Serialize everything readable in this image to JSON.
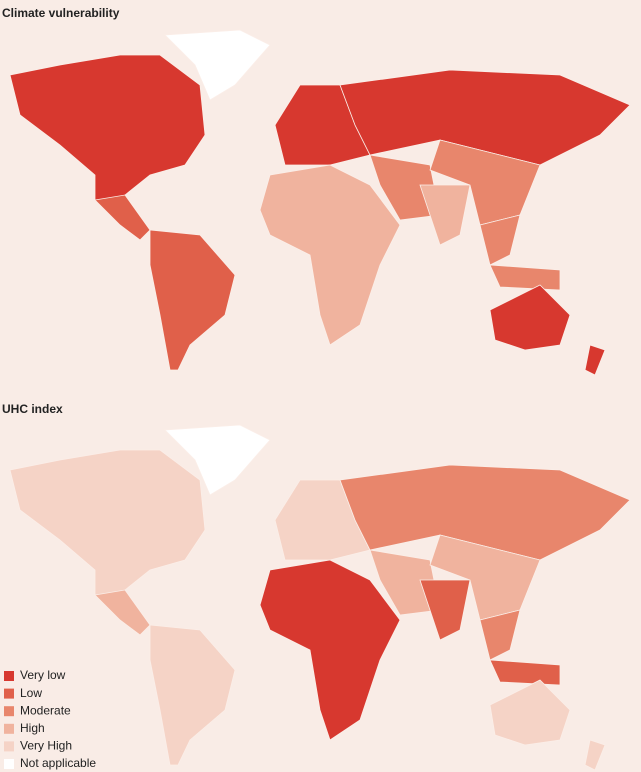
{
  "maps": [
    {
      "title": "Climate vulnerability"
    },
    {
      "title": "UHC index"
    }
  ],
  "legend": {
    "items": [
      {
        "label": "Very low",
        "color": "#d7382f"
      },
      {
        "label": "Low",
        "color": "#e0604a"
      },
      {
        "label": "Moderate",
        "color": "#e8866c"
      },
      {
        "label": "High",
        "color": "#f0b39e"
      },
      {
        "label": "Very High",
        "color": "#f5d3c6"
      },
      {
        "label": "Not applicable",
        "color": "#ffffff"
      }
    ]
  }
}
